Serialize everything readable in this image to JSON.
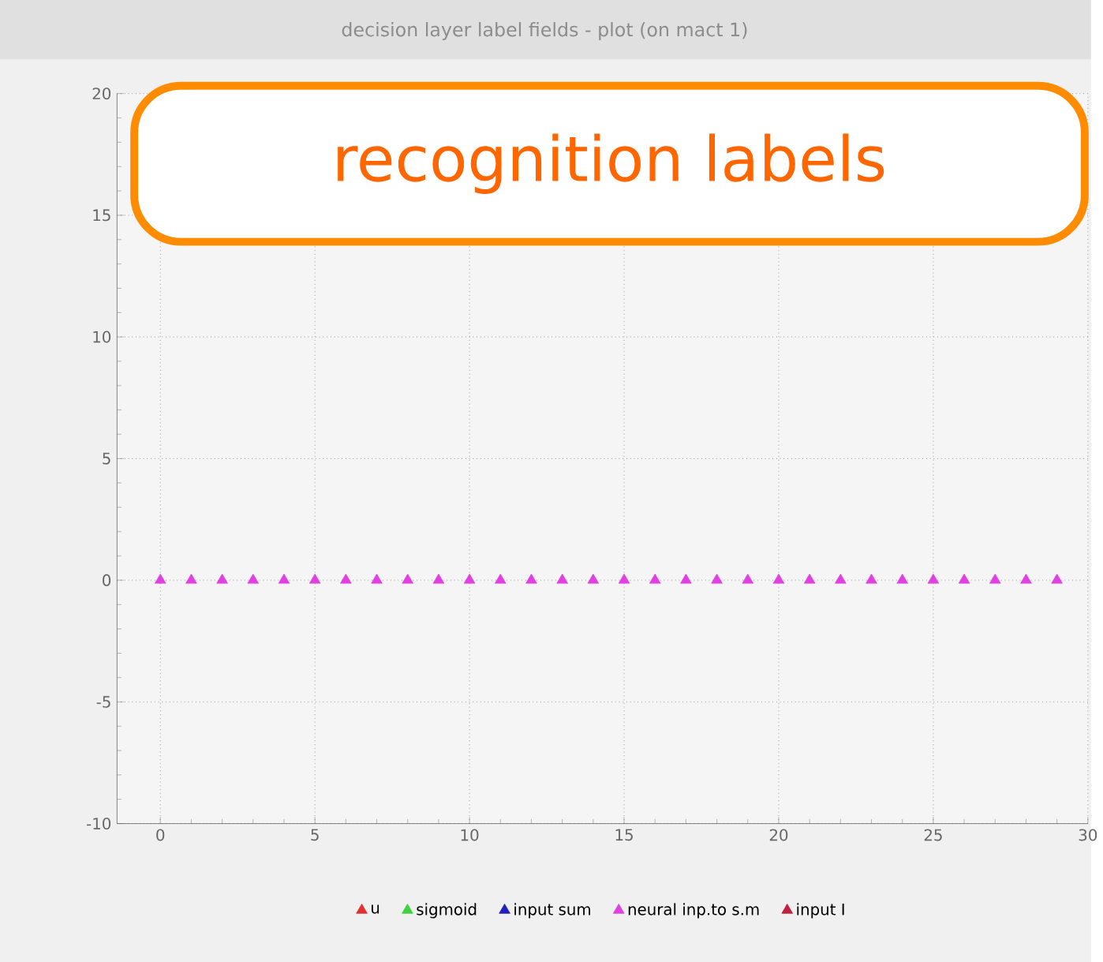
{
  "chart_data": {
    "type": "scatter",
    "title": "decision layer label fields - plot (on mact 1)",
    "annotations": [
      "recognition labels"
    ],
    "x": [
      0,
      1,
      2,
      3,
      4,
      5,
      6,
      7,
      8,
      9,
      10,
      11,
      12,
      13,
      14,
      15,
      16,
      17,
      18,
      19,
      20,
      21,
      22,
      23,
      24,
      25,
      26,
      27,
      28,
      29
    ],
    "series": [
      {
        "name": "u",
        "color": "#e03030",
        "values": [
          null,
          null,
          null,
          null,
          null,
          null,
          null,
          null,
          null,
          null,
          null,
          null,
          null,
          null,
          null,
          null,
          null,
          null,
          null,
          null,
          null,
          null,
          null,
          null,
          null,
          null,
          null,
          null,
          null,
          null
        ]
      },
      {
        "name": "sigmoid",
        "color": "#40d040",
        "values": [
          null,
          null,
          null,
          null,
          null,
          null,
          null,
          null,
          null,
          null,
          null,
          null,
          null,
          null,
          null,
          null,
          null,
          null,
          null,
          null,
          null,
          null,
          null,
          null,
          null,
          null,
          null,
          null,
          null,
          null
        ]
      },
      {
        "name": "input sum",
        "color": "#2020c0",
        "values": [
          null,
          null,
          null,
          null,
          null,
          null,
          null,
          null,
          null,
          null,
          null,
          null,
          null,
          null,
          null,
          null,
          null,
          null,
          null,
          null,
          null,
          null,
          null,
          null,
          null,
          null,
          null,
          null,
          null,
          null
        ]
      },
      {
        "name": "neural inp.to s.m",
        "color": "#e040e0",
        "values": [
          0,
          0,
          0,
          0,
          0,
          0,
          0,
          0,
          0,
          0,
          0,
          0,
          0,
          0,
          0,
          0,
          0,
          0,
          0,
          0,
          0,
          0,
          0,
          0,
          0,
          0,
          0,
          0,
          0,
          0
        ]
      },
      {
        "name": "input I",
        "color": "#c02040",
        "values": [
          null,
          null,
          null,
          null,
          null,
          null,
          null,
          null,
          null,
          null,
          null,
          null,
          null,
          null,
          null,
          null,
          null,
          null,
          null,
          null,
          null,
          null,
          null,
          null,
          null,
          null,
          null,
          null,
          null,
          null
        ]
      }
    ],
    "xlim": [
      -1.4,
      30
    ],
    "xticks": [
      0,
      5,
      10,
      15,
      20,
      25,
      30
    ],
    "ylim": [
      -10,
      20
    ],
    "yticks": [
      -10,
      -5,
      0,
      5,
      10,
      15,
      20
    ],
    "grid": true,
    "marker": "triangle",
    "legend": "bottom"
  }
}
